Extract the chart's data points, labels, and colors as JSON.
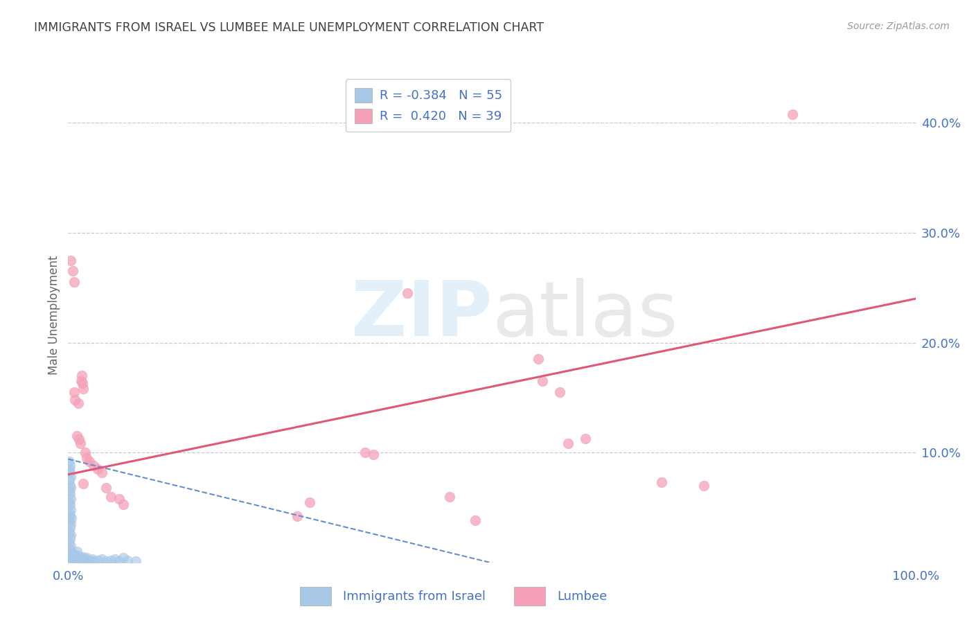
{
  "title": "IMMIGRANTS FROM ISRAEL VS LUMBEE MALE UNEMPLOYMENT CORRELATION CHART",
  "source": "Source: ZipAtlas.com",
  "ylabel_label": "Male Unemployment",
  "xlim": [
    0.0,
    1.0
  ],
  "ylim": [
    0.0,
    0.45
  ],
  "legend_r1": "R = -0.384",
  "legend_n1": "N = 55",
  "legend_r2": "R =  0.420",
  "legend_n2": "N = 39",
  "color_blue": "#a8c8e8",
  "color_pink": "#f5a0b8",
  "color_line_blue": "#6090d0",
  "color_line_pink": "#e05878",
  "color_axis": "#4472c4",
  "color_title": "#404040",
  "blue_points": [
    [
      0.001,
      0.092
    ],
    [
      0.002,
      0.088
    ],
    [
      0.001,
      0.085
    ],
    [
      0.002,
      0.082
    ],
    [
      0.003,
      0.078
    ],
    [
      0.001,
      0.075
    ],
    [
      0.002,
      0.07
    ],
    [
      0.003,
      0.068
    ],
    [
      0.001,
      0.065
    ],
    [
      0.002,
      0.062
    ],
    [
      0.003,
      0.058
    ],
    [
      0.001,
      0.055
    ],
    [
      0.002,
      0.052
    ],
    [
      0.003,
      0.048
    ],
    [
      0.001,
      0.045
    ],
    [
      0.002,
      0.042
    ],
    [
      0.004,
      0.04
    ],
    [
      0.001,
      0.038
    ],
    [
      0.003,
      0.035
    ],
    [
      0.002,
      0.032
    ],
    [
      0.001,
      0.028
    ],
    [
      0.003,
      0.025
    ],
    [
      0.002,
      0.022
    ],
    [
      0.001,
      0.018
    ],
    [
      0.003,
      0.015
    ],
    [
      0.002,
      0.012
    ],
    [
      0.001,
      0.008
    ],
    [
      0.004,
      0.005
    ],
    [
      0.002,
      0.003
    ],
    [
      0.001,
      0.001
    ],
    [
      0.005,
      0.008
    ],
    [
      0.006,
      0.006
    ],
    [
      0.007,
      0.004
    ],
    [
      0.008,
      0.007
    ],
    [
      0.009,
      0.005
    ],
    [
      0.01,
      0.003
    ],
    [
      0.012,
      0.006
    ],
    [
      0.014,
      0.004
    ],
    [
      0.016,
      0.002
    ],
    [
      0.018,
      0.005
    ],
    [
      0.02,
      0.003
    ],
    [
      0.022,
      0.004
    ],
    [
      0.025,
      0.002
    ],
    [
      0.028,
      0.003
    ],
    [
      0.03,
      0.001
    ],
    [
      0.035,
      0.002
    ],
    [
      0.04,
      0.003
    ],
    [
      0.045,
      0.001
    ],
    [
      0.05,
      0.002
    ],
    [
      0.055,
      0.003
    ],
    [
      0.06,
      0.001
    ],
    [
      0.065,
      0.004
    ],
    [
      0.07,
      0.002
    ],
    [
      0.08,
      0.001
    ],
    [
      0.01,
      0.01
    ]
  ],
  "pink_points": [
    [
      0.003,
      0.275
    ],
    [
      0.005,
      0.265
    ],
    [
      0.007,
      0.255
    ],
    [
      0.015,
      0.165
    ],
    [
      0.016,
      0.17
    ],
    [
      0.017,
      0.163
    ],
    [
      0.018,
      0.158
    ],
    [
      0.007,
      0.155
    ],
    [
      0.008,
      0.148
    ],
    [
      0.012,
      0.145
    ],
    [
      0.01,
      0.115
    ],
    [
      0.013,
      0.112
    ],
    [
      0.014,
      0.108
    ],
    [
      0.02,
      0.1
    ],
    [
      0.022,
      0.095
    ],
    [
      0.025,
      0.092
    ],
    [
      0.03,
      0.088
    ],
    [
      0.035,
      0.085
    ],
    [
      0.04,
      0.082
    ],
    [
      0.018,
      0.072
    ],
    [
      0.045,
      0.068
    ],
    [
      0.05,
      0.06
    ],
    [
      0.06,
      0.058
    ],
    [
      0.065,
      0.053
    ],
    [
      0.4,
      0.245
    ],
    [
      0.555,
      0.185
    ],
    [
      0.56,
      0.165
    ],
    [
      0.58,
      0.155
    ],
    [
      0.59,
      0.108
    ],
    [
      0.61,
      0.113
    ],
    [
      0.45,
      0.06
    ],
    [
      0.7,
      0.073
    ],
    [
      0.75,
      0.07
    ],
    [
      0.855,
      0.408
    ],
    [
      0.35,
      0.1
    ],
    [
      0.36,
      0.098
    ],
    [
      0.27,
      0.042
    ],
    [
      0.285,
      0.055
    ],
    [
      0.48,
      0.038
    ]
  ],
  "blue_line_x": [
    0.0,
    0.55
  ],
  "blue_line_y": [
    0.094,
    -0.01
  ],
  "pink_line_x": [
    0.0,
    1.0
  ],
  "pink_line_y": [
    0.08,
    0.24
  ]
}
